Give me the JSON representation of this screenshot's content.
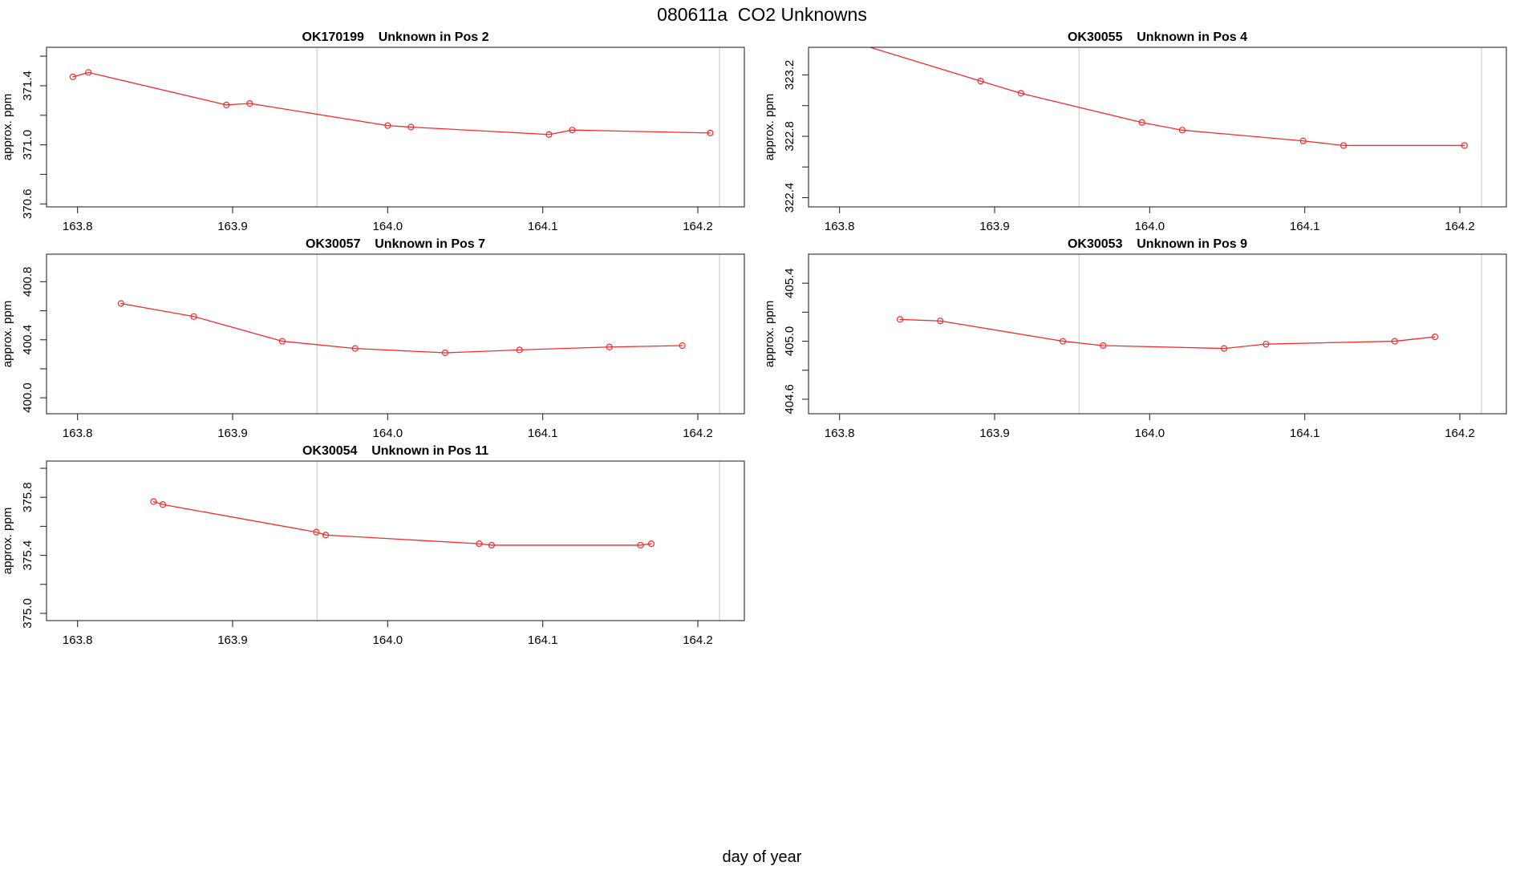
{
  "figure": {
    "title": "080611a  CO2 Unknowns",
    "xlabel": "day of year",
    "ylabel": "approx. ppm",
    "background": "#ffffff",
    "series_color": "#f22c2c",
    "vline_color": "#d8d8d8",
    "frame_color": "#2b2b2b",
    "text_color": "#000000"
  },
  "chart_data": [
    {
      "type": "line",
      "sample_id": "OK170199",
      "position": "Pos 2",
      "title": "OK170199    Unknown in Pos 2",
      "ylabel": "approx. ppm",
      "xlim": [
        163.78,
        164.23
      ],
      "xticks": [
        163.8,
        163.9,
        164.0,
        164.1,
        164.2
      ],
      "xtick_labels": [
        "163.8",
        "163.9",
        "164.0",
        "164.1",
        "164.2"
      ],
      "ylim": [
        370.58,
        371.66
      ],
      "yticks": [
        370.6,
        370.8,
        371.0,
        371.2,
        371.4,
        371.6
      ],
      "ytick_labels": [
        "370.6",
        "",
        "371.0",
        "",
        "371.4",
        ""
      ],
      "vlines": [
        163.9545,
        164.214
      ],
      "x": [
        163.797,
        163.807,
        163.896,
        163.911,
        164.0,
        164.015,
        164.104,
        164.119,
        164.208
      ],
      "y": [
        371.46,
        371.49,
        371.27,
        371.28,
        371.13,
        371.12,
        371.07,
        371.1,
        371.08
      ]
    },
    {
      "type": "line",
      "sample_id": "OK30055",
      "position": "Pos 4",
      "title": "OK30055    Unknown in Pos 4",
      "ylabel": "approx. ppm",
      "xlim": [
        163.78,
        164.23
      ],
      "xticks": [
        163.8,
        163.9,
        164.0,
        164.1,
        164.2
      ],
      "xtick_labels": [
        "163.8",
        "163.9",
        "164.0",
        "164.1",
        "164.2"
      ],
      "ylim": [
        322.34,
        323.38
      ],
      "yticks": [
        322.4,
        322.6,
        322.8,
        323.0,
        323.2
      ],
      "ytick_labels": [
        "322.4",
        "",
        "322.8",
        "",
        "323.2"
      ],
      "vlines": [
        163.9545,
        164.214
      ],
      "x": [
        163.797,
        163.891,
        163.917,
        163.995,
        164.021,
        164.099,
        164.125,
        164.203
      ],
      "y": [
        323.45,
        323.16,
        323.08,
        322.89,
        322.84,
        322.77,
        322.74,
        322.74
      ]
    },
    {
      "type": "line",
      "sample_id": "OK30057",
      "position": "Pos 7",
      "title": "OK30057    Unknown in Pos 7",
      "ylabel": "approx. ppm",
      "xlim": [
        163.78,
        164.23
      ],
      "xticks": [
        163.8,
        163.9,
        164.0,
        164.1,
        164.2
      ],
      "xtick_labels": [
        "163.8",
        "163.9",
        "164.0",
        "164.1",
        "164.2"
      ],
      "ylim": [
        399.89,
        400.99
      ],
      "yticks": [
        400.0,
        400.2,
        400.4,
        400.6,
        400.8
      ],
      "ytick_labels": [
        "400.0",
        "",
        "400.4",
        "",
        "400.8"
      ],
      "vlines": [
        163.9545,
        164.214
      ],
      "x": [
        163.828,
        163.875,
        163.932,
        163.979,
        164.037,
        164.085,
        164.143,
        164.19
      ],
      "y": [
        400.65,
        400.56,
        400.39,
        400.34,
        400.31,
        400.33,
        400.35,
        400.36
      ]
    },
    {
      "type": "line",
      "sample_id": "OK30053",
      "position": "Pos 9",
      "title": "OK30053    Unknown in Pos 9",
      "ylabel": "approx. ppm",
      "xlim": [
        163.78,
        164.23
      ],
      "xticks": [
        163.8,
        163.9,
        164.0,
        164.1,
        164.2
      ],
      "xtick_labels": [
        "163.8",
        "163.9",
        "164.0",
        "164.1",
        "164.2"
      ],
      "ylim": [
        404.5,
        405.6
      ],
      "yticks": [
        404.6,
        404.8,
        405.0,
        405.2,
        405.4
      ],
      "ytick_labels": [
        "404.6",
        "",
        "405.0",
        "",
        "405.4"
      ],
      "vlines": [
        163.9545,
        164.214
      ],
      "x": [
        163.839,
        163.865,
        163.944,
        163.97,
        164.048,
        164.075,
        164.158,
        164.184
      ],
      "y": [
        405.15,
        405.14,
        405.0,
        404.97,
        404.95,
        404.98,
        405.0,
        405.03
      ]
    },
    {
      "type": "line",
      "sample_id": "OK30054",
      "position": "Pos 11",
      "title": "OK30054    Unknown in Pos 11",
      "ylabel": "approx. ppm",
      "xlim": [
        163.78,
        164.23
      ],
      "xticks": [
        163.8,
        163.9,
        164.0,
        164.1,
        164.2
      ],
      "xtick_labels": [
        "163.8",
        "163.9",
        "164.0",
        "164.1",
        "164.2"
      ],
      "ylim": [
        374.95,
        376.05
      ],
      "yticks": [
        375.0,
        375.2,
        375.4,
        375.6,
        375.8,
        376.0
      ],
      "ytick_labels": [
        "375.0",
        "",
        "375.4",
        "",
        "375.8",
        ""
      ],
      "vlines": [
        163.9545,
        164.214
      ],
      "x": [
        163.849,
        163.855,
        163.954,
        163.96,
        164.059,
        164.067,
        164.163,
        164.17
      ],
      "y": [
        375.77,
        375.75,
        375.56,
        375.54,
        375.48,
        375.47,
        375.47,
        375.48
      ]
    }
  ]
}
